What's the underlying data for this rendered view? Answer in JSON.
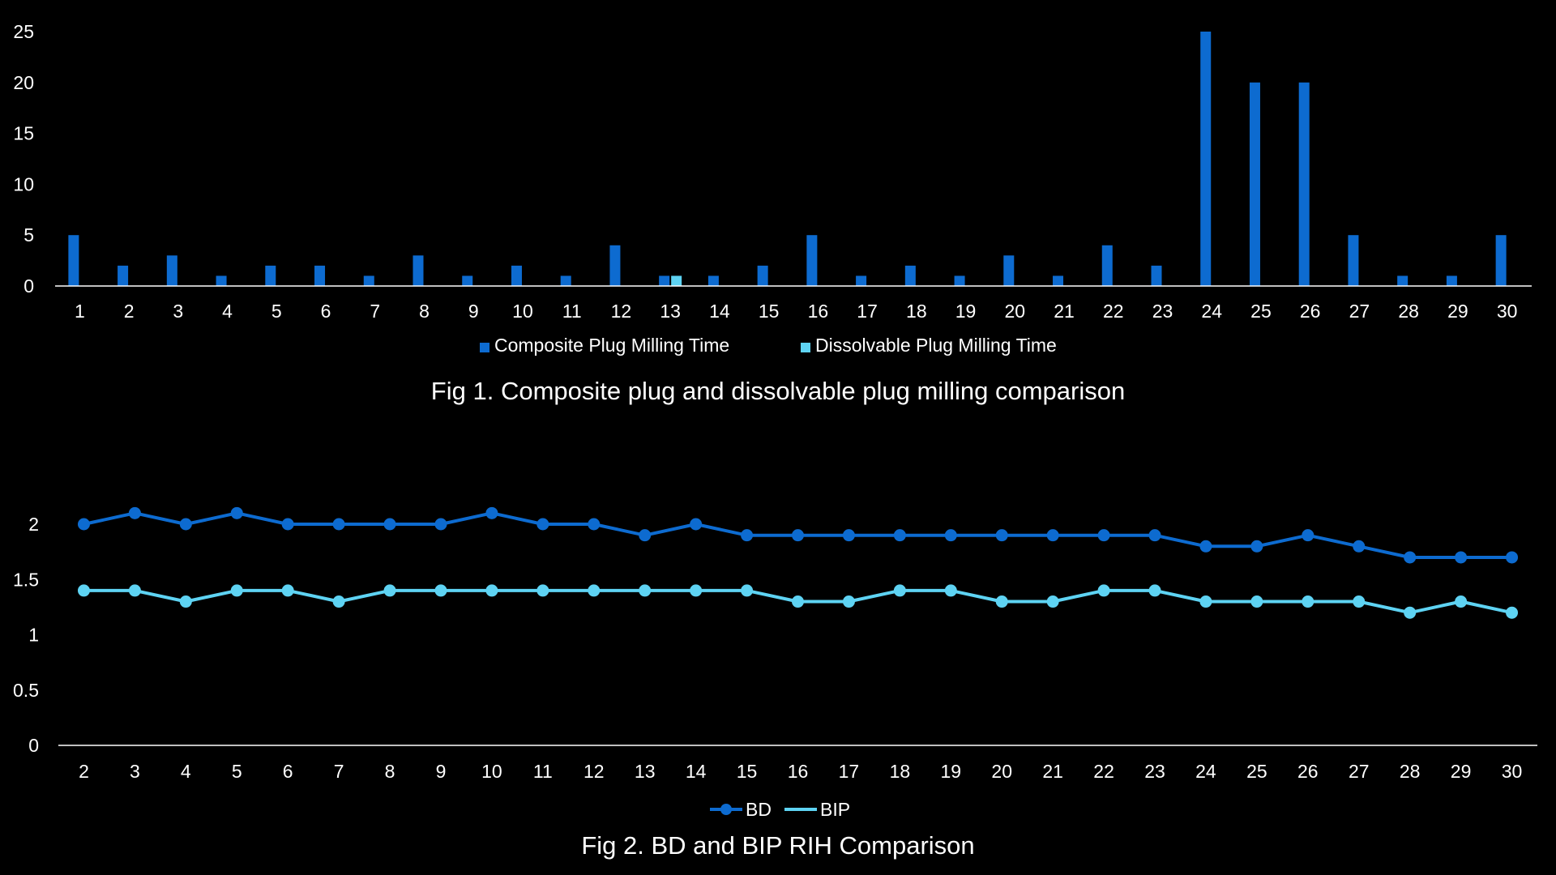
{
  "colors": {
    "background": "#000000",
    "composite": "#0D6BD0",
    "dissolvable": "#5ED3F3",
    "bd": "#0D6BD0",
    "bip": "#5ED3F3",
    "text": "#FFFFFF",
    "axis": "#FFFFFF"
  },
  "chart_data": [
    {
      "type": "bar",
      "caption": "Fig 1. Composite plug and dissolvable plug milling comparison",
      "categories": [
        "1",
        "2",
        "3",
        "4",
        "5",
        "6",
        "7",
        "8",
        "9",
        "10",
        "11",
        "12",
        "13",
        "14",
        "15",
        "16",
        "17",
        "18",
        "19",
        "20",
        "21",
        "22",
        "23",
        "24",
        "25",
        "26",
        "27",
        "28",
        "29",
        "30"
      ],
      "series": [
        {
          "name": "Composite Plug Milling Time",
          "values": [
            5,
            2,
            3,
            1,
            2,
            2,
            1,
            3,
            1,
            2,
            1,
            4,
            1,
            1,
            2,
            5,
            1,
            2,
            1,
            3,
            1,
            4,
            2,
            25,
            20,
            20,
            5,
            1,
            1,
            5
          ]
        },
        {
          "name": "Dissolvable Plug Milling Time",
          "values": [
            0,
            0,
            0,
            0,
            0,
            0,
            0,
            0,
            0,
            0,
            0,
            0,
            1,
            0,
            0,
            0,
            0,
            0,
            0,
            0,
            0,
            0,
            0,
            0,
            0,
            0,
            0,
            0,
            0,
            0
          ]
        }
      ],
      "yticks": [
        "0",
        "5",
        "10",
        "15",
        "20",
        "25"
      ],
      "ylim": [
        0,
        25
      ],
      "legend": "bottom"
    },
    {
      "type": "line",
      "caption": "Fig 2. BD and BIP RIH Comparison",
      "categories": [
        "2",
        "3",
        "4",
        "5",
        "6",
        "7",
        "8",
        "9",
        "10",
        "11",
        "12",
        "13",
        "14",
        "15",
        "16",
        "17",
        "18",
        "19",
        "20",
        "21",
        "22",
        "23",
        "24",
        "25",
        "26",
        "27",
        "28",
        "29",
        "30"
      ],
      "series": [
        {
          "name": "BD",
          "values": [
            2.0,
            2.1,
            2.0,
            2.1,
            2.0,
            2.0,
            2.0,
            2.0,
            2.1,
            2.0,
            2.0,
            1.9,
            2.0,
            1.9,
            1.9,
            1.9,
            1.9,
            1.9,
            1.9,
            1.9,
            1.9,
            1.9,
            1.8,
            1.8,
            1.9,
            1.8,
            1.7,
            1.7,
            1.7
          ]
        },
        {
          "name": "BIP",
          "values": [
            1.4,
            1.4,
            1.3,
            1.4,
            1.4,
            1.3,
            1.4,
            1.4,
            1.4,
            1.4,
            1.4,
            1.4,
            1.4,
            1.4,
            1.3,
            1.3,
            1.4,
            1.4,
            1.3,
            1.3,
            1.4,
            1.4,
            1.3,
            1.3,
            1.3,
            1.3,
            1.2,
            1.3,
            1.2
          ]
        }
      ],
      "yticks": [
        "0",
        "0.5",
        "1",
        "1.5",
        "2"
      ],
      "ylim": [
        0,
        2.3
      ],
      "legend": "bottom"
    }
  ]
}
